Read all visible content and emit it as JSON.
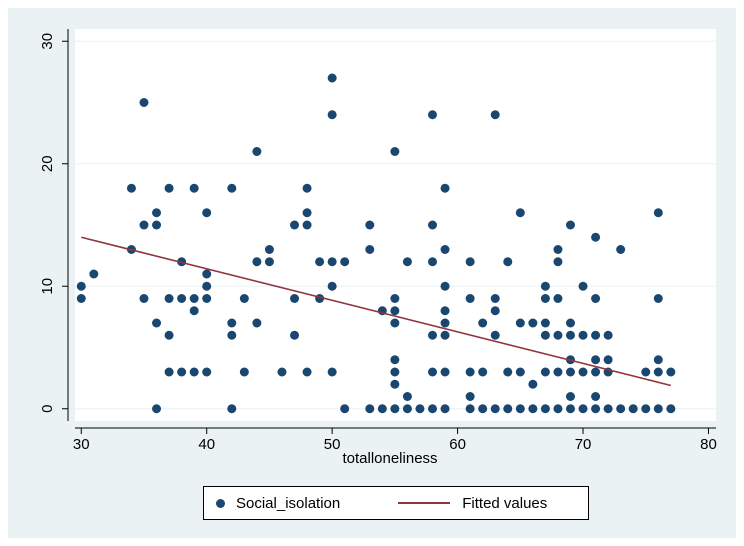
{
  "colors": {
    "background": "#eaf2f3",
    "plot_background": "#ffffff",
    "grid": "#eaf2f3",
    "marker": "#1a476f",
    "fit_line": "#90353b"
  },
  "chart_data": {
    "type": "scatter",
    "title": "",
    "xlabel": "totalloneliness",
    "ylabel": "",
    "xlim": [
      29.5,
      80.6
    ],
    "ylim": [
      -1,
      31
    ],
    "xticks": [
      30,
      40,
      50,
      60,
      70,
      80
    ],
    "yticks": [
      0,
      10,
      20,
      30
    ],
    "grid": true,
    "legend_position": "bottom",
    "series": [
      {
        "name": "Social_isolation",
        "kind": "scatter",
        "points": [
          [
            30,
            10
          ],
          [
            30,
            9
          ],
          [
            31,
            11
          ],
          [
            34,
            18
          ],
          [
            34,
            13
          ],
          [
            35,
            25
          ],
          [
            35,
            15
          ],
          [
            35,
            9
          ],
          [
            36,
            16
          ],
          [
            36,
            15
          ],
          [
            36,
            7
          ],
          [
            36,
            0
          ],
          [
            37,
            18
          ],
          [
            37,
            9
          ],
          [
            37,
            6
          ],
          [
            37,
            3
          ],
          [
            38,
            12
          ],
          [
            38,
            9
          ],
          [
            38,
            3
          ],
          [
            39,
            18
          ],
          [
            39,
            9
          ],
          [
            39,
            8
          ],
          [
            39,
            3
          ],
          [
            40,
            16
          ],
          [
            40,
            11
          ],
          [
            40,
            10
          ],
          [
            40,
            9
          ],
          [
            40,
            3
          ],
          [
            42,
            18
          ],
          [
            42,
            7
          ],
          [
            42,
            6
          ],
          [
            42,
            0
          ],
          [
            43,
            9
          ],
          [
            43,
            3
          ],
          [
            44,
            21
          ],
          [
            44,
            12
          ],
          [
            44,
            7
          ],
          [
            45,
            13
          ],
          [
            45,
            12
          ],
          [
            46,
            3
          ],
          [
            47,
            15
          ],
          [
            47,
            9
          ],
          [
            47,
            6
          ],
          [
            48,
            18
          ],
          [
            48,
            16
          ],
          [
            48,
            15
          ],
          [
            48,
            3
          ],
          [
            49,
            12
          ],
          [
            49,
            9
          ],
          [
            50,
            27
          ],
          [
            50,
            24
          ],
          [
            50,
            12
          ],
          [
            50,
            10
          ],
          [
            50,
            3
          ],
          [
            51,
            12
          ],
          [
            51,
            0
          ],
          [
            53,
            15
          ],
          [
            53,
            13
          ],
          [
            53,
            0
          ],
          [
            54,
            8
          ],
          [
            54,
            0
          ],
          [
            55,
            21
          ],
          [
            55,
            9
          ],
          [
            55,
            8
          ],
          [
            55,
            7
          ],
          [
            55,
            4
          ],
          [
            55,
            3
          ],
          [
            55,
            2
          ],
          [
            55,
            0
          ],
          [
            56,
            12
          ],
          [
            56,
            1
          ],
          [
            56,
            0
          ],
          [
            57,
            0
          ],
          [
            58,
            24
          ],
          [
            58,
            15
          ],
          [
            58,
            12
          ],
          [
            58,
            6
          ],
          [
            58,
            3
          ],
          [
            58,
            0
          ],
          [
            59,
            18
          ],
          [
            59,
            13
          ],
          [
            59,
            10
          ],
          [
            59,
            8
          ],
          [
            59,
            7
          ],
          [
            59,
            6
          ],
          [
            59,
            3
          ],
          [
            59,
            0
          ],
          [
            61,
            12
          ],
          [
            61,
            9
          ],
          [
            61,
            3
          ],
          [
            61,
            1
          ],
          [
            61,
            0
          ],
          [
            62,
            7
          ],
          [
            62,
            3
          ],
          [
            62,
            0
          ],
          [
            63,
            24
          ],
          [
            63,
            9
          ],
          [
            63,
            8
          ],
          [
            63,
            6
          ],
          [
            63,
            0
          ],
          [
            64,
            12
          ],
          [
            64,
            3
          ],
          [
            64,
            0
          ],
          [
            65,
            16
          ],
          [
            65,
            7
          ],
          [
            65,
            3
          ],
          [
            65,
            0
          ],
          [
            66,
            7
          ],
          [
            66,
            2
          ],
          [
            66,
            0
          ],
          [
            67,
            10
          ],
          [
            67,
            9
          ],
          [
            67,
            7
          ],
          [
            67,
            6
          ],
          [
            67,
            3
          ],
          [
            67,
            0
          ],
          [
            68,
            13
          ],
          [
            68,
            12
          ],
          [
            68,
            9
          ],
          [
            68,
            6
          ],
          [
            68,
            3
          ],
          [
            68,
            0
          ],
          [
            69,
            15
          ],
          [
            69,
            7
          ],
          [
            69,
            6
          ],
          [
            69,
            4
          ],
          [
            69,
            3
          ],
          [
            69,
            1
          ],
          [
            69,
            0
          ],
          [
            70,
            10
          ],
          [
            70,
            6
          ],
          [
            70,
            3
          ],
          [
            70,
            0
          ],
          [
            71,
            14
          ],
          [
            71,
            9
          ],
          [
            71,
            6
          ],
          [
            71,
            4
          ],
          [
            71,
            3
          ],
          [
            71,
            1
          ],
          [
            71,
            0
          ],
          [
            72,
            6
          ],
          [
            72,
            4
          ],
          [
            72,
            3
          ],
          [
            72,
            0
          ],
          [
            73,
            13
          ],
          [
            73,
            0
          ],
          [
            74,
            0
          ],
          [
            75,
            3
          ],
          [
            75,
            0
          ],
          [
            76,
            16
          ],
          [
            76,
            9
          ],
          [
            76,
            4
          ],
          [
            76,
            3
          ],
          [
            76,
            0
          ],
          [
            77,
            3
          ],
          [
            77,
            0
          ]
        ]
      },
      {
        "name": "Fitted values",
        "kind": "line",
        "x": [
          30,
          77
        ],
        "y": [
          14.0,
          1.9
        ]
      }
    ]
  }
}
